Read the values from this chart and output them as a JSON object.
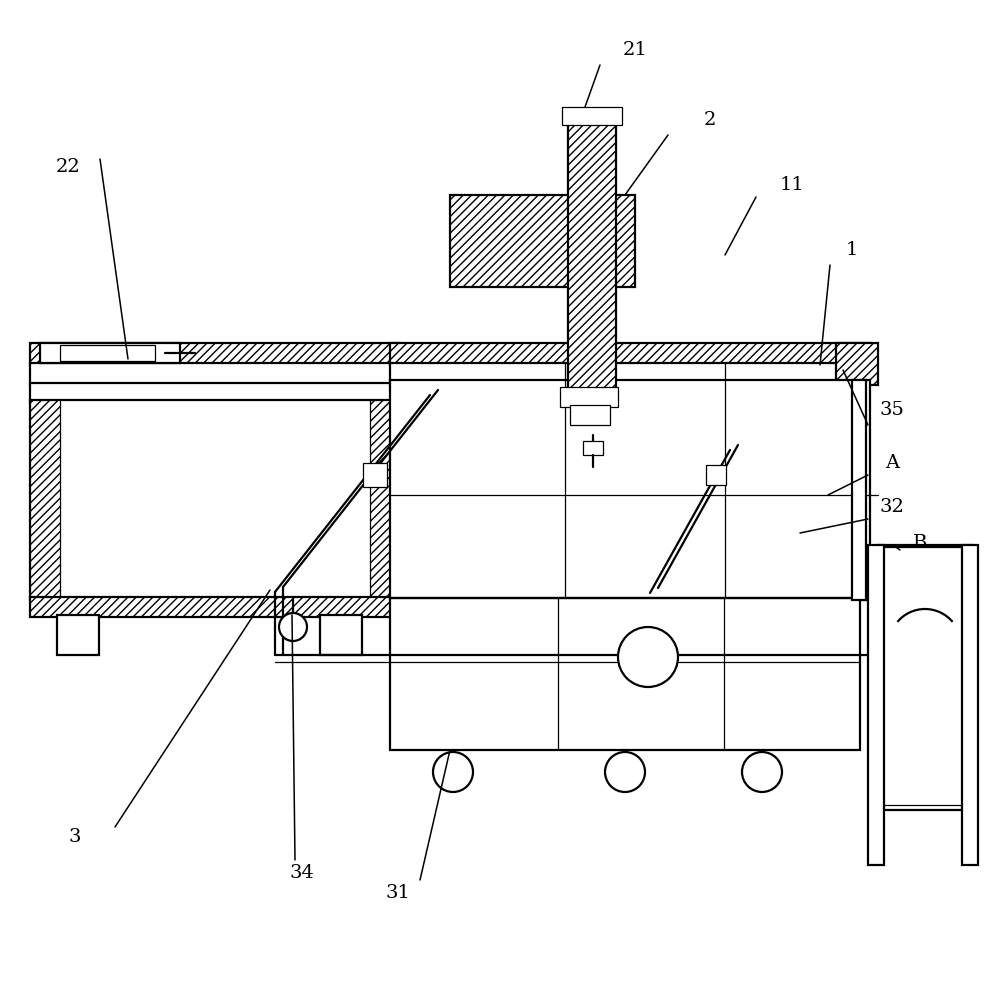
{
  "bg": "#ffffff",
  "lc": "#000000",
  "lw": 1.6,
  "tlw": 0.9,
  "fs": 14,
  "hatch": "////",
  "figsize": [
    10.0,
    9.85
  ],
  "dpi": 100,
  "xlim": [
    0,
    1000
  ],
  "ylim": [
    0,
    985
  ]
}
